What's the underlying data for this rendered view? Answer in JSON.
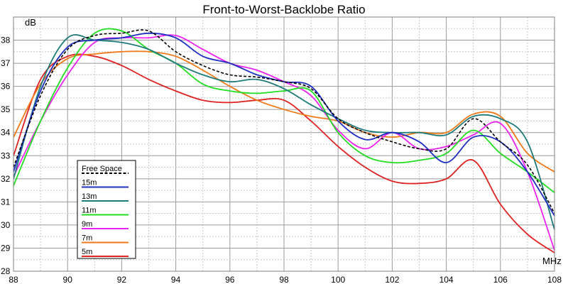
{
  "chart_data": {
    "type": "line",
    "title": "Front-to-Worst-Backlobe Ratio",
    "ylabel": "dB",
    "xlabel": "MHz",
    "xlim": [
      88,
      108
    ],
    "ylim": [
      28,
      39
    ],
    "xticks": [
      88,
      90,
      92,
      94,
      96,
      98,
      100,
      102,
      104,
      106,
      108
    ],
    "yticks": [
      28,
      29,
      30,
      31,
      32,
      33,
      34,
      35,
      36,
      37,
      38
    ],
    "grid": true,
    "legend_position": "bottom-left",
    "series": [
      {
        "name": "Free Space",
        "color": "#000000",
        "dashed": true,
        "x": [
          88,
          89,
          90,
          91,
          92,
          93,
          94,
          95,
          96,
          97,
          98,
          99,
          100,
          101,
          102,
          103,
          104,
          105,
          106,
          107,
          108
        ],
        "y": [
          32.5,
          35.6,
          37.6,
          38.2,
          38.3,
          38.4,
          37.5,
          36.9,
          36.5,
          36.4,
          36.2,
          35.9,
          34.6,
          34.0,
          33.6,
          33.3,
          33.3,
          34.6,
          33.6,
          32.6,
          30.5
        ]
      },
      {
        "name": "15m",
        "color": "#1f2fbf",
        "dashed": false,
        "x": [
          88,
          89,
          90,
          91,
          92,
          93,
          94,
          95,
          96,
          97,
          98,
          99,
          100,
          101,
          102,
          103,
          104,
          105,
          106,
          107,
          108
        ],
        "y": [
          32.3,
          35.8,
          37.7,
          38.0,
          38.1,
          38.3,
          38.1,
          37.3,
          37.0,
          36.5,
          36.2,
          36.0,
          34.5,
          33.7,
          34.0,
          33.6,
          32.7,
          33.8,
          33.6,
          32.3,
          30.4
        ]
      },
      {
        "name": "13m",
        "color": "#1f7a7a",
        "dashed": false,
        "x": [
          88,
          89,
          90,
          91,
          92,
          93,
          94,
          95,
          96,
          97,
          98,
          99,
          100,
          101,
          102,
          103,
          104,
          105,
          106,
          107,
          108
        ],
        "y": [
          32.0,
          36.0,
          38.1,
          38.0,
          37.9,
          37.6,
          37.0,
          36.5,
          36.2,
          36.3,
          35.9,
          35.2,
          34.6,
          34.1,
          34.0,
          34.0,
          33.9,
          34.7,
          34.6,
          33.6,
          29.8
        ]
      },
      {
        "name": "11m",
        "color": "#22dd22",
        "dashed": false,
        "x": [
          88,
          89,
          90,
          91,
          92,
          93,
          94,
          95,
          96,
          97,
          98,
          99,
          100,
          101,
          102,
          103,
          104,
          105,
          106,
          107,
          108
        ],
        "y": [
          31.7,
          34.5,
          36.8,
          38.3,
          38.4,
          37.6,
          37.0,
          36.1,
          35.8,
          35.7,
          35.8,
          35.8,
          34.0,
          33.0,
          32.7,
          32.8,
          33.1,
          34.1,
          33.1,
          32.3,
          31.4
        ]
      },
      {
        "name": "9m",
        "color": "#ee22ee",
        "dashed": false,
        "x": [
          88,
          89,
          90,
          91,
          92,
          93,
          94,
          95,
          96,
          97,
          98,
          99,
          100,
          101,
          102,
          103,
          104,
          105,
          106,
          107,
          108
        ],
        "y": [
          32.1,
          34.5,
          36.5,
          37.9,
          38.1,
          38.1,
          38.2,
          37.6,
          37.0,
          36.7,
          36.2,
          35.6,
          34.1,
          33.3,
          34.0,
          33.3,
          33.4,
          33.9,
          34.4,
          32.3,
          28.9
        ]
      },
      {
        "name": "7m",
        "color": "#f07a1a",
        "dashed": false,
        "x": [
          88,
          89,
          90,
          91,
          92,
          93,
          94,
          95,
          96,
          97,
          98,
          99,
          100,
          101,
          102,
          103,
          104,
          105,
          106,
          107,
          108
        ],
        "y": [
          33.8,
          36.1,
          37.2,
          37.4,
          37.5,
          37.5,
          37.3,
          36.7,
          36.0,
          35.4,
          35.0,
          34.7,
          34.5,
          34.0,
          33.8,
          34.0,
          34.0,
          34.8,
          34.7,
          33.1,
          32.3
        ]
      },
      {
        "name": "5m",
        "color": "#dd2222",
        "dashed": false,
        "x": [
          88,
          89,
          90,
          91,
          92,
          93,
          94,
          95,
          96,
          97,
          98,
          99,
          100,
          101,
          102,
          103,
          104,
          105,
          106,
          107,
          108
        ],
        "y": [
          33.0,
          36.3,
          37.3,
          37.3,
          36.9,
          36.3,
          35.8,
          35.4,
          35.3,
          35.4,
          35.4,
          34.5,
          33.4,
          32.5,
          31.9,
          31.8,
          32.0,
          32.8,
          30.9,
          29.6,
          28.8
        ]
      }
    ]
  }
}
